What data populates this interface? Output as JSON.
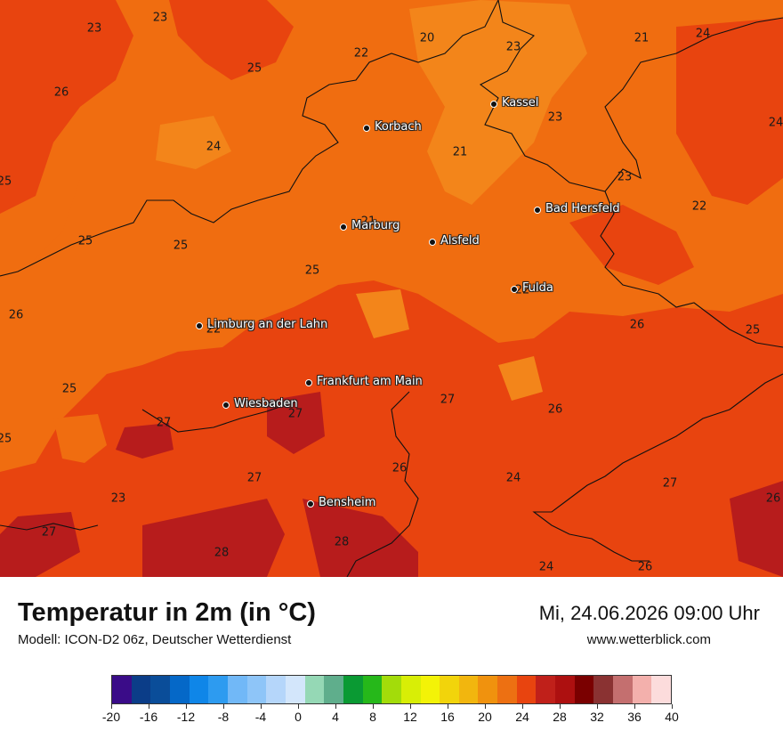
{
  "header": {
    "title": "Temperatur in 2m (in °C)",
    "model": "Modell: ICON-D2 06z, Deutscher Wetterdienst",
    "datetime": "Mi, 24.06.2026 09:00 Uhr",
    "website": "www.wetterblick.com"
  },
  "map": {
    "cities": [
      {
        "name": "Kassel"
      },
      {
        "name": "Korbach"
      },
      {
        "name": "Bad Hersfeld"
      },
      {
        "name": "Marburg"
      },
      {
        "name": "Alsfeld"
      },
      {
        "name": "Fulda"
      },
      {
        "name": "Limburg an der Lahn"
      },
      {
        "name": "Frankfurt am Main"
      },
      {
        "name": "Wiesbaden"
      },
      {
        "name": "Bensheim"
      }
    ],
    "temperature_labels": [
      "23",
      "23",
      "26",
      "25",
      "22",
      "20",
      "23",
      "21",
      "24",
      "24",
      "24",
      "23",
      "25",
      "21",
      "22",
      "23",
      "21",
      "25",
      "25",
      "25",
      "26",
      "22",
      "26",
      "25",
      "26",
      "25",
      "27",
      "27",
      "27",
      "25",
      "26",
      "24",
      "27",
      "26",
      "27",
      "23",
      "27",
      "28",
      "28",
      "24",
      "26",
      "22",
      "22"
    ],
    "colors": {
      "zone_24_26": "#e8440f",
      "zone_22_24": "#f06d10",
      "zone_20_22": "#f3851a",
      "zone_26_28": "#b71c1c"
    }
  },
  "legend": {
    "tick_labels": [
      "-20",
      "-16",
      "-12",
      "-8",
      "-4",
      "0",
      "4",
      "8",
      "12",
      "16",
      "20",
      "24",
      "28",
      "32",
      "36",
      "40"
    ],
    "colors": [
      "#3a0c88",
      "#0b3d88",
      "#0a4d99",
      "#0568c8",
      "#0f86e8",
      "#2d9bf0",
      "#71b8f7",
      "#8ec5f8",
      "#b5d6fa",
      "#d3e6fb",
      "#95d8b5",
      "#5fae8c",
      "#0a9a33",
      "#26b81a",
      "#a3dc0a",
      "#d8ee06",
      "#f3f307",
      "#f2d40b",
      "#f2b60e",
      "#f0920e",
      "#ed7012",
      "#e8440f",
      "#c0201a",
      "#ad1010",
      "#7a0000",
      "#8a3232",
      "#c46f6f",
      "#f3b0ac",
      "#fcdcdc"
    ]
  }
}
